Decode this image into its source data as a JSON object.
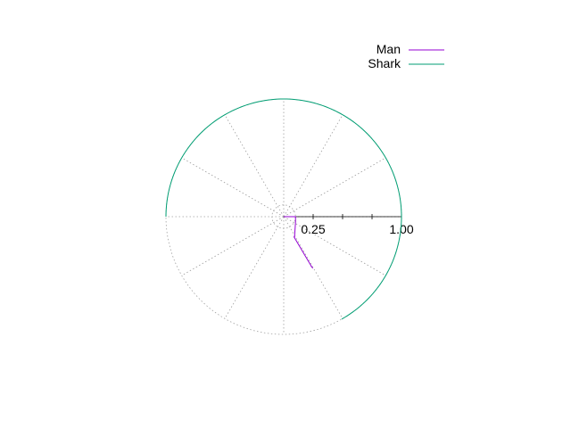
{
  "chart_data": {
    "type": "line",
    "coordinate_system": "polar",
    "radial_axis": {
      "range": [
        0,
        1.0
      ],
      "tick_labels": [
        {
          "value": 0.25,
          "label": "0.25"
        },
        {
          "value": 1.0,
          "label": "1.00"
        }
      ],
      "minor_tick_values": [
        0.5,
        0.75
      ]
    },
    "grid": {
      "on": true,
      "circle_radii": [
        0.1,
        1.0
      ],
      "spoke_angles_deg": [
        0,
        30,
        60,
        90,
        120,
        150,
        180,
        210,
        240,
        270,
        300,
        330
      ]
    },
    "legend": {
      "position": "top-right"
    },
    "series": [
      {
        "name": "Man",
        "color": "#9400d3",
        "points": [
          {
            "r": 0.0,
            "theta_deg": 0
          },
          {
            "r": 0.1,
            "theta_deg": 0
          },
          {
            "r": 0.11,
            "theta_deg": -24
          },
          {
            "r": 0.1967,
            "theta_deg": -62.2
          },
          {
            "r": 0.1901,
            "theta_deg": -63.1
          },
          {
            "r": 0.4838,
            "theta_deg": -60.9
          },
          {
            "r": 0.4838,
            "theta_deg": -61.0
          },
          {
            "r": 0.5034,
            "theta_deg": -60.5
          }
        ]
      },
      {
        "name": "Shark",
        "color": "#009e73",
        "points": [
          {
            "r": 1.0,
            "theta_deg": 180
          },
          {
            "r": 1.0,
            "theta_deg": 150
          },
          {
            "r": 1.0,
            "theta_deg": 120
          },
          {
            "r": 1.0,
            "theta_deg": 90
          },
          {
            "r": 1.0,
            "theta_deg": 60
          },
          {
            "r": 1.0,
            "theta_deg": 30
          },
          {
            "r": 1.0,
            "theta_deg": 0
          },
          {
            "r": 1.0,
            "theta_deg": -30
          },
          {
            "r": 1.0,
            "theta_deg": -60.5
          }
        ]
      }
    ]
  }
}
